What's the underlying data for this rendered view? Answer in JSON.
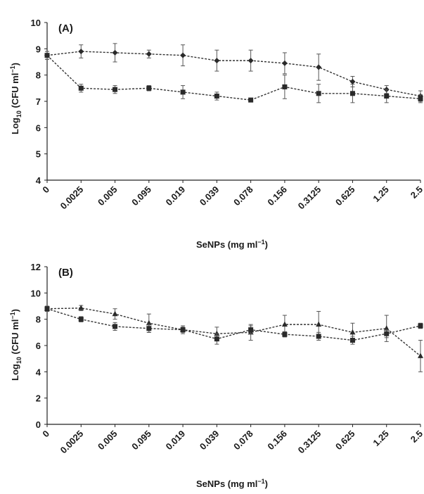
{
  "chart_data": [
    {
      "type": "line",
      "panel_label": "(A)",
      "categories": [
        "0",
        "0.0025",
        "0.005",
        "0.095",
        "0.019",
        "0.039",
        "0.078",
        "0.156",
        "0.3125",
        "0.625",
        "1.25",
        "2.5"
      ],
      "xlabel_main": "SeNPs (mg ml",
      "xlabel_sup": "−1",
      "xlabel_end": ")",
      "ylabel_pre": "Log",
      "ylabel_sub": "10",
      "ylabel_main": " (CFU ml",
      "ylabel_sup": "−1",
      "ylabel_end": ")",
      "ylim": [
        4,
        10
      ],
      "yticks": [
        4,
        5,
        6,
        7,
        8,
        9,
        10
      ],
      "series": [
        {
          "marker": "diamond",
          "values": [
            8.75,
            8.9,
            8.85,
            8.8,
            8.75,
            8.55,
            8.55,
            8.45,
            8.3,
            7.75,
            7.45,
            7.2
          ],
          "errors": [
            0.15,
            0.25,
            0.35,
            0.15,
            0.4,
            0.4,
            0.4,
            0.4,
            0.5,
            0.2,
            0.15,
            0.2
          ]
        },
        {
          "marker": "square",
          "values": [
            8.75,
            7.5,
            7.45,
            7.5,
            7.35,
            7.2,
            7.05,
            7.55,
            7.3,
            7.3,
            7.2,
            7.1
          ],
          "errors": [
            0.15,
            0.15,
            0.15,
            0.1,
            0.25,
            0.15,
            0.05,
            0.45,
            0.35,
            0.35,
            0.25,
            0.15
          ]
        }
      ]
    },
    {
      "type": "line",
      "panel_label": "(B)",
      "categories": [
        "0",
        "0.0025",
        "0.005",
        "0.095",
        "0.019",
        "0.039",
        "0.078",
        "0.156",
        "0.3125",
        "0.625",
        "1.25",
        "2.5"
      ],
      "xlabel_main": "SeNPs (mg ml",
      "xlabel_sup": "−1",
      "xlabel_end": ")",
      "ylabel_pre": "Log",
      "ylabel_sub": "10",
      "ylabel_main": " (CFU ml",
      "ylabel_sup": "−1",
      "ylabel_end": ")",
      "ylim": [
        0,
        12
      ],
      "yticks": [
        0,
        2,
        4,
        6,
        8,
        10,
        12
      ],
      "series": [
        {
          "marker": "triangle",
          "values": [
            8.8,
            8.85,
            8.4,
            7.7,
            7.2,
            6.9,
            7.0,
            7.6,
            7.6,
            7.0,
            7.3,
            5.2
          ],
          "errors": [
            0.2,
            0.2,
            0.4,
            0.7,
            0.3,
            0.5,
            0.6,
            0.7,
            1.0,
            0.7,
            1.0,
            1.2
          ]
        },
        {
          "marker": "square",
          "values": [
            8.8,
            8.0,
            7.45,
            7.3,
            7.2,
            6.5,
            7.2,
            6.85,
            6.7,
            6.4,
            6.9,
            7.5
          ],
          "errors": [
            0.2,
            0.2,
            0.3,
            0.3,
            0.2,
            0.4,
            0.3,
            0.2,
            0.3,
            0.3,
            0.3,
            0.2
          ]
        }
      ]
    }
  ]
}
